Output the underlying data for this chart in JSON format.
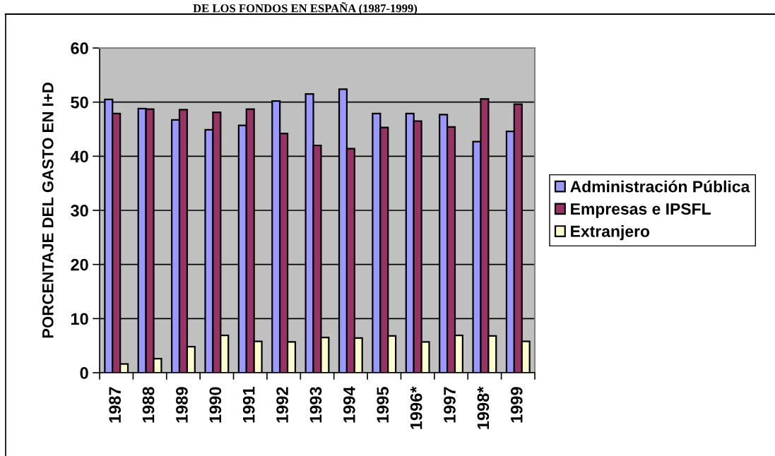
{
  "chart_data": {
    "type": "bar",
    "title": "DE LOS FONDOS EN ESPAÑA (1987-1999)",
    "ylabel": "PORCENTAJE DEL GASTO EN I+D",
    "categories": [
      "1987",
      "1988",
      "1989",
      "1990",
      "1991",
      "1992",
      "1993",
      "1994",
      "1995",
      "1996*",
      "1997",
      "1998*",
      "1999"
    ],
    "series": [
      {
        "name": "Administración Pública",
        "color": "#9999ff",
        "values": [
          50.5,
          48.8,
          46.7,
          44.9,
          45.7,
          50.2,
          51.5,
          52.4,
          47.9,
          47.9,
          47.7,
          42.7,
          44.6
        ]
      },
      {
        "name": "Empresas e IPSFL",
        "color": "#993366",
        "values": [
          47.9,
          48.7,
          48.6,
          48.1,
          48.7,
          44.2,
          42.0,
          41.4,
          45.3,
          46.5,
          45.4,
          50.6,
          49.6
        ]
      },
      {
        "name": "Extranjero",
        "color": "#ffffcc",
        "values": [
          1.6,
          2.6,
          4.8,
          6.9,
          5.8,
          5.7,
          6.5,
          6.4,
          6.8,
          5.7,
          6.9,
          6.8,
          5.8
        ]
      }
    ],
    "ylim": [
      0,
      60
    ],
    "yticks": [
      0,
      10,
      20,
      30,
      40,
      50,
      60
    ],
    "grid": "y",
    "legend": "right"
  }
}
